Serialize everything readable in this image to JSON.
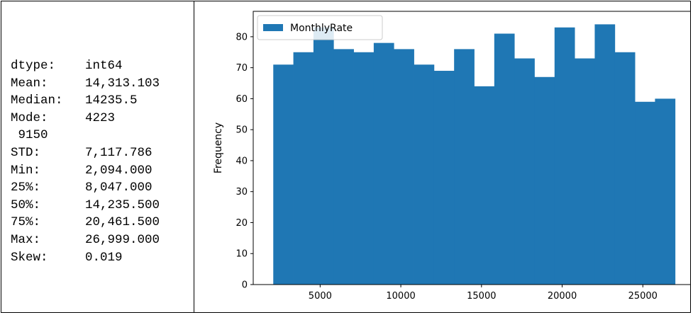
{
  "stats": [
    {
      "key": "dtype:",
      "value": "int64"
    },
    {
      "key": "Mean:",
      "value": "14,313.103"
    },
    {
      "key": "Median:",
      "value": "14235.5"
    },
    {
      "key": "Mode:",
      "value": "4223"
    },
    {
      "key": "",
      "value": " 9150"
    },
    {
      "key": "STD:",
      "value": "7,117.786"
    },
    {
      "key": "Min:",
      "value": "2,094.000"
    },
    {
      "key": "25%:",
      "value": "8,047.000"
    },
    {
      "key": "50%:",
      "value": "14,235.500"
    },
    {
      "key": "75%:",
      "value": "20,461.500"
    },
    {
      "key": "Max:",
      "value": "26,999.000"
    },
    {
      "key": "Skew:",
      "value": "0.019"
    }
  ],
  "chart_data": {
    "type": "bar",
    "bin_edges": [
      2094,
      3339.25,
      4584.5,
      5829.75,
      7075,
      8320.25,
      9565.5,
      10810.75,
      12056,
      13301.25,
      14546.5,
      15791.75,
      17037,
      18282.25,
      19527.5,
      20772.75,
      22018,
      23263.25,
      24508.5,
      25753.75,
      26999
    ],
    "values": [
      71,
      75,
      83,
      76,
      75,
      78,
      76,
      71,
      69,
      76,
      64,
      81,
      73,
      67,
      83,
      73,
      84,
      75,
      59,
      60
    ],
    "series": [
      {
        "name": "MonthlyRate"
      }
    ],
    "ylabel": "Frequency",
    "xlabel": "",
    "xlim": [
      851.75,
      28241.25
    ],
    "ylim": [
      0,
      88.2
    ],
    "xticks": [
      5000,
      10000,
      15000,
      20000,
      25000
    ],
    "yticks": [
      0,
      10,
      20,
      30,
      40,
      50,
      60,
      70,
      80
    ],
    "grid": false,
    "legend_position": "top-left",
    "color": "#1f77b4"
  }
}
